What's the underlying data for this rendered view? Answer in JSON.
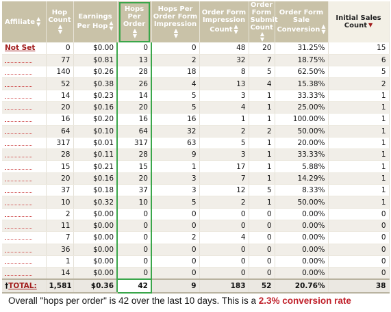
{
  "headers": [
    {
      "label": "Affiliate",
      "sort": "both"
    },
    {
      "label": "Hop Count",
      "sort": "both"
    },
    {
      "label": "Earnings Per Hop",
      "sort": "both"
    },
    {
      "label": "Hops Per Order",
      "sort": "both"
    },
    {
      "label": "Hops Per Order Form Impression",
      "sort": "both"
    },
    {
      "label": "Order Form Impression Count",
      "sort": "both"
    },
    {
      "label": "Order Form Submit Count",
      "sort": "both"
    },
    {
      "label": "Order Form Sale Conversion",
      "sort": "both"
    },
    {
      "label": "Initial Sales Count",
      "sort": "down"
    }
  ],
  "rows": [
    {
      "affiliate": "Not Set",
      "hop_count": "0",
      "earnings": "$0.00",
      "hops_per_order": "0",
      "hops_per_ofi": "0",
      "ofi_count": "48",
      "submit": "20",
      "conversion": "31.25%",
      "sales": "15"
    },
    {
      "affiliate": "",
      "hop_count": "77",
      "earnings": "$0.81",
      "hops_per_order": "13",
      "hops_per_ofi": "2",
      "ofi_count": "32",
      "submit": "7",
      "conversion": "18.75%",
      "sales": "6"
    },
    {
      "affiliate": "",
      "hop_count": "140",
      "earnings": "$0.26",
      "hops_per_order": "28",
      "hops_per_ofi": "18",
      "ofi_count": "8",
      "submit": "5",
      "conversion": "62.50%",
      "sales": "5"
    },
    {
      "affiliate": "",
      "hop_count": "52",
      "earnings": "$0.38",
      "hops_per_order": "26",
      "hops_per_ofi": "4",
      "ofi_count": "13",
      "submit": "4",
      "conversion": "15.38%",
      "sales": "2"
    },
    {
      "affiliate": "",
      "hop_count": "14",
      "earnings": "$0.23",
      "hops_per_order": "14",
      "hops_per_ofi": "5",
      "ofi_count": "3",
      "submit": "1",
      "conversion": "33.33%",
      "sales": "1"
    },
    {
      "affiliate": "",
      "hop_count": "20",
      "earnings": "$0.16",
      "hops_per_order": "20",
      "hops_per_ofi": "5",
      "ofi_count": "4",
      "submit": "1",
      "conversion": "25.00%",
      "sales": "1"
    },
    {
      "affiliate": "",
      "hop_count": "16",
      "earnings": "$0.20",
      "hops_per_order": "16",
      "hops_per_ofi": "16",
      "ofi_count": "1",
      "submit": "1",
      "conversion": "100.00%",
      "sales": "1"
    },
    {
      "affiliate": "",
      "hop_count": "64",
      "earnings": "$0.10",
      "hops_per_order": "64",
      "hops_per_ofi": "32",
      "ofi_count": "2",
      "submit": "2",
      "conversion": "50.00%",
      "sales": "1"
    },
    {
      "affiliate": "",
      "hop_count": "317",
      "earnings": "$0.01",
      "hops_per_order": "317",
      "hops_per_ofi": "63",
      "ofi_count": "5",
      "submit": "1",
      "conversion": "20.00%",
      "sales": "1"
    },
    {
      "affiliate": "",
      "hop_count": "28",
      "earnings": "$0.11",
      "hops_per_order": "28",
      "hops_per_ofi": "9",
      "ofi_count": "3",
      "submit": "1",
      "conversion": "33.33%",
      "sales": "1"
    },
    {
      "affiliate": "",
      "hop_count": "15",
      "earnings": "$0.21",
      "hops_per_order": "15",
      "hops_per_ofi": "1",
      "ofi_count": "17",
      "submit": "1",
      "conversion": "5.88%",
      "sales": "1"
    },
    {
      "affiliate": "",
      "hop_count": "20",
      "earnings": "$0.16",
      "hops_per_order": "20",
      "hops_per_ofi": "3",
      "ofi_count": "7",
      "submit": "1",
      "conversion": "14.29%",
      "sales": "1"
    },
    {
      "affiliate": "",
      "hop_count": "37",
      "earnings": "$0.18",
      "hops_per_order": "37",
      "hops_per_ofi": "3",
      "ofi_count": "12",
      "submit": "5",
      "conversion": "8.33%",
      "sales": "1"
    },
    {
      "affiliate": "",
      "hop_count": "10",
      "earnings": "$0.32",
      "hops_per_order": "10",
      "hops_per_ofi": "5",
      "ofi_count": "2",
      "submit": "1",
      "conversion": "50.00%",
      "sales": "1"
    },
    {
      "affiliate": "",
      "hop_count": "2",
      "earnings": "$0.00",
      "hops_per_order": "0",
      "hops_per_ofi": "0",
      "ofi_count": "0",
      "submit": "0",
      "conversion": "0.00%",
      "sales": "0"
    },
    {
      "affiliate": "",
      "hop_count": "11",
      "earnings": "$0.00",
      "hops_per_order": "0",
      "hops_per_ofi": "0",
      "ofi_count": "0",
      "submit": "0",
      "conversion": "0.00%",
      "sales": "0"
    },
    {
      "affiliate": "",
      "hop_count": "7",
      "earnings": "$0.00",
      "hops_per_order": "0",
      "hops_per_ofi": "2",
      "ofi_count": "4",
      "submit": "0",
      "conversion": "0.00%",
      "sales": "0"
    },
    {
      "affiliate": "",
      "hop_count": "36",
      "earnings": "$0.00",
      "hops_per_order": "0",
      "hops_per_ofi": "0",
      "ofi_count": "0",
      "submit": "0",
      "conversion": "0.00%",
      "sales": "0"
    },
    {
      "affiliate": "",
      "hop_count": "1",
      "earnings": "$0.00",
      "hops_per_order": "0",
      "hops_per_ofi": "0",
      "ofi_count": "0",
      "submit": "0",
      "conversion": "0.00%",
      "sales": "0"
    },
    {
      "affiliate": "",
      "hop_count": "14",
      "earnings": "$0.00",
      "hops_per_order": "0",
      "hops_per_ofi": "0",
      "ofi_count": "0",
      "submit": "0",
      "conversion": "0.00%",
      "sales": "0"
    }
  ],
  "total": {
    "label": "TOTAL:",
    "marker": "†",
    "hop_count": "1,581",
    "earnings": "$0.36",
    "hops_per_order": "42",
    "hops_per_ofi": "9",
    "ofi_count": "183",
    "submit": "52",
    "conversion": "20.76%",
    "sales": "38"
  },
  "caption": {
    "text": "Overall \"hops per order\" is 42 over the last 10 days. This is a ",
    "highlight": "2.3% conversion rate"
  },
  "colors": {
    "header_bg": "#c9c2a8",
    "accent_red": "#a11c1c",
    "highlight_green": "#3aa64a",
    "caption_red": "#c0202a"
  }
}
